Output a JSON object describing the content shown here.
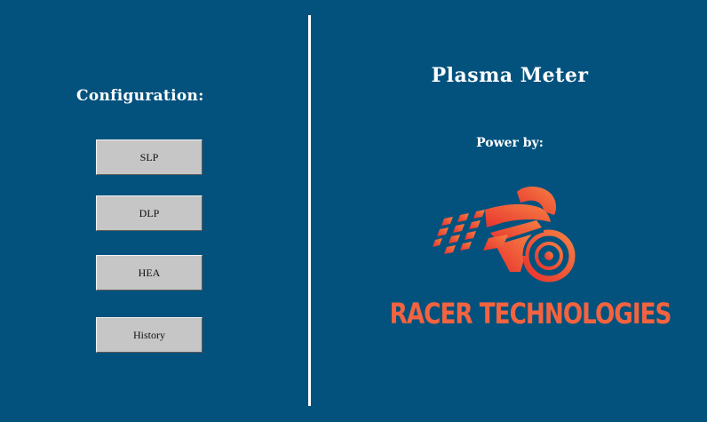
{
  "config": {
    "heading": "Configuration:",
    "buttons": {
      "slp": "SLP",
      "dlp": "DLP",
      "hea": "HEA",
      "history": "History"
    }
  },
  "app": {
    "title": "Plasma Meter",
    "powered_by": "Power by:"
  },
  "brand": {
    "name": "RACER TECHNOLOGIES",
    "logo_icon": "motorcycle-racer-icon"
  },
  "colors": {
    "background": "#03527e",
    "button_face": "#c6c6c6",
    "brand_orange": "#f3633f",
    "brand_red": "#e8322e"
  }
}
